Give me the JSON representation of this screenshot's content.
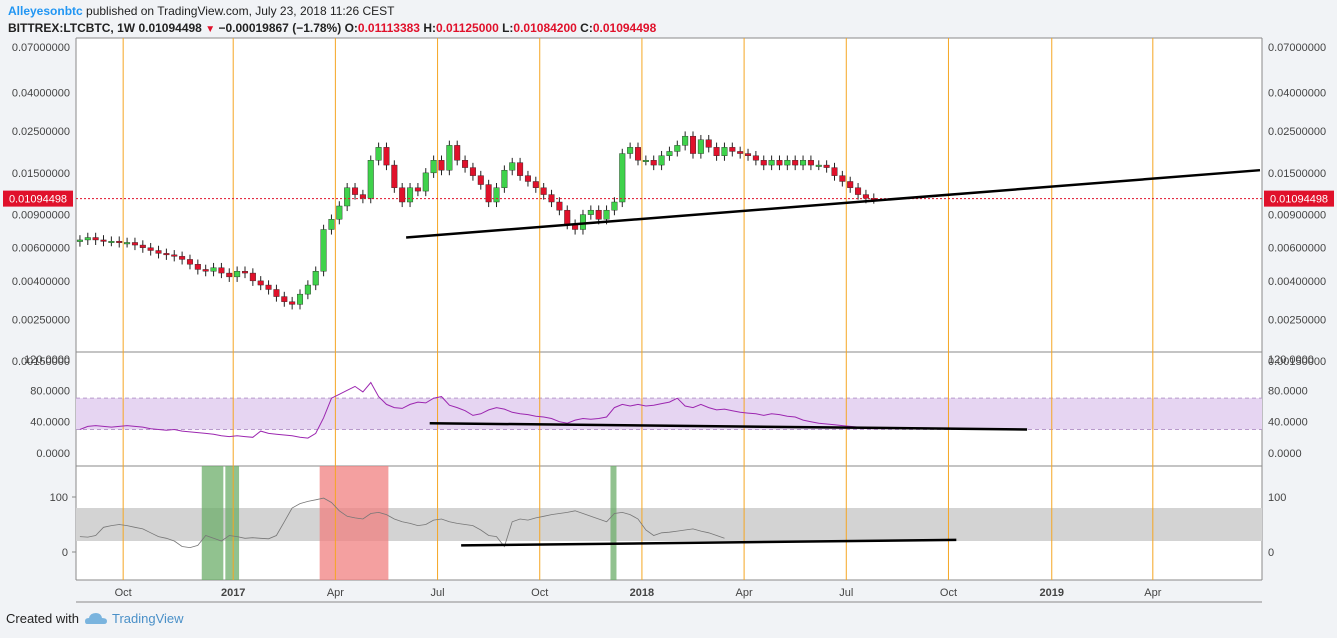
{
  "header": {
    "author": "Alleyesonbtc",
    "published_text": " published on TradingView.com, July 23, 2018 11:26 CEST",
    "symbol": "BITTREX:LTCBTC, 1W",
    "last": "0.01094498",
    "change": "−0.00019867 (−1.78%)",
    "o_label": "O:",
    "o_val": "0.01113383",
    "h_label": "H:",
    "h_val": "0.01125000",
    "l_label": "L:",
    "l_val": "0.01084200",
    "c_label": "C:",
    "c_val": "0.01094498"
  },
  "footer": {
    "created_with": "Created with",
    "brand": "TradingView"
  },
  "colors": {
    "up": "#3fd24b",
    "down": "#e0112b",
    "vline": "#f5a623",
    "trend": "#000000",
    "rsi_line": "#9c27b0",
    "rsi_band": "#e6d5f2",
    "osc_band": "#d3d3d3",
    "green_zone": "#6cae6a",
    "red_zone": "#f08080",
    "price_line": "#e0112b",
    "price_tag_bg": "#e0112b"
  },
  "chart_data": [
    {
      "type": "candlestick",
      "panel": "price",
      "scale": "log",
      "y_ticks": [
        "0.07000000",
        "0.04000000",
        "0.02500000",
        "0.01500000",
        "0.00900000",
        "0.00600000",
        "0.00400000",
        "0.00250000",
        "0.00150000"
      ],
      "current_price_tag": "0.01094498",
      "x_ticks": [
        "Oct",
        "2017",
        "Apr",
        "Jul",
        "Oct",
        "2018",
        "Apr",
        "Jul",
        "Oct",
        "2019",
        "Apr"
      ],
      "weeks_start": "2016-08-15",
      "closes": [
        0.0066,
        0.0068,
        0.0066,
        0.0065,
        0.0065,
        0.0064,
        0.0064,
        0.0062,
        0.006,
        0.0058,
        0.0056,
        0.0055,
        0.0054,
        0.0052,
        0.0049,
        0.0046,
        0.0045,
        0.0047,
        0.0044,
        0.0042,
        0.0045,
        0.0044,
        0.004,
        0.0038,
        0.0036,
        0.0033,
        0.0031,
        0.003,
        0.0034,
        0.0038,
        0.0045,
        0.0075,
        0.0085,
        0.01,
        0.0125,
        0.0115,
        0.011,
        0.0175,
        0.0205,
        0.0165,
        0.0125,
        0.0105,
        0.0125,
        0.012,
        0.015,
        0.0175,
        0.0155,
        0.021,
        0.0175,
        0.016,
        0.0145,
        0.013,
        0.0105,
        0.0125,
        0.0155,
        0.017,
        0.0145,
        0.0135,
        0.0125,
        0.0115,
        0.0105,
        0.0095,
        0.008,
        0.0075,
        0.009,
        0.0095,
        0.0085,
        0.0095,
        0.0105,
        0.019,
        0.0205,
        0.0175,
        0.0175,
        0.0165,
        0.0185,
        0.0195,
        0.021,
        0.0235,
        0.019,
        0.0225,
        0.0205,
        0.0185,
        0.0205,
        0.0195,
        0.019,
        0.0185,
        0.0175,
        0.0165,
        0.0175,
        0.0165,
        0.0175,
        0.0165,
        0.0175,
        0.0165,
        0.0165,
        0.016,
        0.0145,
        0.0135,
        0.0125,
        0.0115,
        0.011,
        0.01094498
      ],
      "trendline": {
        "from": [
          "2017-06-05",
          0.0068
        ],
        "to": [
          "2018-12-24",
          0.0155
        ]
      },
      "price_trendline_alt_extent": [
        "2018-12-24"
      ],
      "vertical_lines": [
        "2016-09-26",
        "2017-01-02",
        "2017-04-03",
        "2017-07-03",
        "2017-10-02",
        "2018-01-01",
        "2018-04-02",
        "2018-07-02",
        "2018-10-01",
        "2019-01-01",
        "2019-04-01"
      ]
    },
    {
      "type": "line",
      "panel": "rsi",
      "y_ticks": [
        "120.0000",
        "80.0000",
        "40.0000",
        "0.0000"
      ],
      "band": [
        30,
        70
      ],
      "values": [
        30,
        34,
        35,
        34,
        33,
        34,
        35,
        34,
        33,
        31,
        30,
        29,
        30,
        28,
        27,
        26,
        25,
        24,
        22,
        21,
        22,
        21,
        20,
        28,
        25,
        24,
        23,
        22,
        20,
        19,
        25,
        45,
        70,
        75,
        80,
        85,
        78,
        90,
        72,
        62,
        58,
        57,
        62,
        65,
        64,
        70,
        72,
        61,
        58,
        54,
        48,
        50,
        55,
        58,
        56,
        52,
        50,
        49,
        47,
        46,
        44,
        40,
        38,
        42,
        44,
        43,
        44,
        46,
        58,
        62,
        60,
        62,
        60,
        61,
        63,
        65,
        70,
        60,
        58,
        62,
        58,
        55,
        56,
        54,
        52,
        51,
        50,
        48,
        50,
        49,
        47,
        46,
        42,
        40,
        38,
        37,
        36,
        35,
        34,
        33,
        32,
        31
      ],
      "trendline": {
        "from": [
          "2017-06-26",
          38
        ],
        "to": [
          "2018-12-10",
          30
        ]
      }
    },
    {
      "type": "line",
      "panel": "oscillator",
      "y_ticks": [
        "100",
        "0"
      ],
      "band": [
        20,
        80
      ],
      "values": [
        28,
        27,
        30,
        45,
        48,
        50,
        48,
        45,
        42,
        35,
        28,
        25,
        20,
        10,
        8,
        12,
        30,
        25,
        20,
        30,
        28,
        25,
        26,
        25,
        24,
        30,
        55,
        80,
        88,
        92,
        95,
        98,
        90,
        75,
        65,
        62,
        60,
        70,
        72,
        68,
        60,
        55,
        52,
        48,
        50,
        58,
        60,
        55,
        52,
        50,
        48,
        40,
        30,
        28,
        10,
        55,
        60,
        58,
        62,
        65,
        68,
        70,
        72,
        75,
        70,
        65,
        60,
        55,
        70,
        72,
        68,
        60,
        40,
        30,
        35,
        36,
        38,
        40,
        42,
        38,
        35,
        30,
        25
      ],
      "zones": [
        {
          "color": "green",
          "from": "2016-12-05",
          "to": "2016-12-26"
        },
        {
          "color": "green",
          "from": "2016-12-26",
          "to": "2017-01-09"
        },
        {
          "color": "red",
          "from": "2017-03-20",
          "to": "2017-05-22"
        },
        {
          "color": "green",
          "from": "2017-12-04",
          "to": "2017-12-11"
        }
      ],
      "trendline": {
        "from": [
          "2017-07-24",
          12
        ],
        "to": [
          "2018-10-08",
          22
        ]
      }
    }
  ]
}
